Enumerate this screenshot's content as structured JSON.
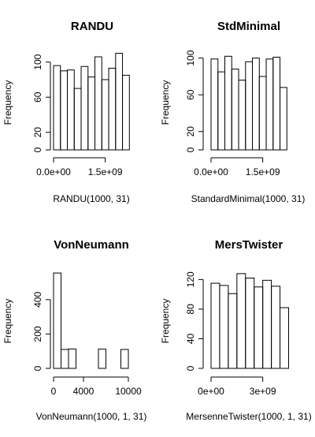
{
  "chart_data": [
    {
      "type": "bar",
      "title": "RANDU",
      "xlabel": "RANDU(1000, 31)",
      "ylabel": "Frequency",
      "xlim": [
        0,
        2147483648
      ],
      "ylim": [
        0,
        115
      ],
      "x_ticks": [
        0,
        1500000000
      ],
      "x_tick_labels": [
        "0.0e+00",
        "1.5e+09"
      ],
      "y_ticks": [
        0,
        20,
        60,
        100
      ],
      "y_tick_labels": [
        "0",
        "20",
        "60",
        "100"
      ],
      "bin_width": 200000000,
      "bins": [
        0,
        200000000,
        400000000,
        600000000,
        800000000,
        1000000000,
        1200000000,
        1400000000,
        1600000000,
        1800000000,
        2000000000
      ],
      "values": [
        96,
        90,
        91,
        70,
        95,
        83,
        106,
        80,
        93,
        110,
        85
      ]
    },
    {
      "type": "bar",
      "title": "StdMinimal",
      "xlabel": "StandardMinimal(1000, 31)",
      "ylabel": "Frequency",
      "xlim": [
        0,
        2147483648
      ],
      "ylim": [
        0,
        110
      ],
      "x_ticks": [
        0,
        1500000000
      ],
      "x_tick_labels": [
        "0.0e+00",
        "1.5e+09"
      ],
      "y_ticks": [
        0,
        20,
        60,
        100
      ],
      "y_tick_labels": [
        "0",
        "20",
        "60",
        "100"
      ],
      "bin_width": 200000000,
      "bins": [
        0,
        200000000,
        400000000,
        600000000,
        800000000,
        1000000000,
        1200000000,
        1400000000,
        1600000000,
        1800000000,
        2000000000
      ],
      "values": [
        99,
        85,
        102,
        88,
        76,
        96,
        100,
        80,
        99,
        101,
        68
      ]
    },
    {
      "type": "bar",
      "title": "VonNeumann",
      "xlabel": "VonNeumann(1000, 1, 31)",
      "ylabel": "Frequency",
      "xlim": [
        0,
        10000
      ],
      "ylim": [
        0,
        560
      ],
      "x_ticks": [
        0,
        4000,
        10000
      ],
      "x_tick_labels": [
        "0",
        "4000",
        "10000"
      ],
      "y_ticks": [
        0,
        200,
        400
      ],
      "y_tick_labels": [
        "0",
        "200",
        "400"
      ],
      "bin_width": 1000,
      "bins": [
        0,
        1000,
        2000,
        3000,
        4000,
        5000,
        6000,
        7000,
        8000,
        9000
      ],
      "values": [
        555,
        110,
        113,
        0,
        0,
        0,
        112,
        0,
        0,
        110
      ]
    },
    {
      "type": "bar",
      "title": "MersTwister",
      "xlabel": "MersenneTwister(1000, 1, 31)",
      "ylabel": "Frequency",
      "xlim": [
        0,
        4294967296
      ],
      "ylim": [
        0,
        130
      ],
      "x_ticks": [
        0,
        3000000000
      ],
      "x_tick_labels": [
        "0e+00",
        "3e+09"
      ],
      "y_ticks": [
        0,
        40,
        80,
        120
      ],
      "y_tick_labels": [
        "0",
        "40",
        "80",
        "120"
      ],
      "bin_width": 500000000,
      "bins": [
        0,
        500000000,
        1000000000,
        1500000000,
        2000000000,
        2500000000,
        3000000000,
        3500000000,
        4000000000
      ],
      "values": [
        115,
        112,
        101,
        128,
        122,
        110,
        119,
        111,
        82
      ]
    }
  ]
}
